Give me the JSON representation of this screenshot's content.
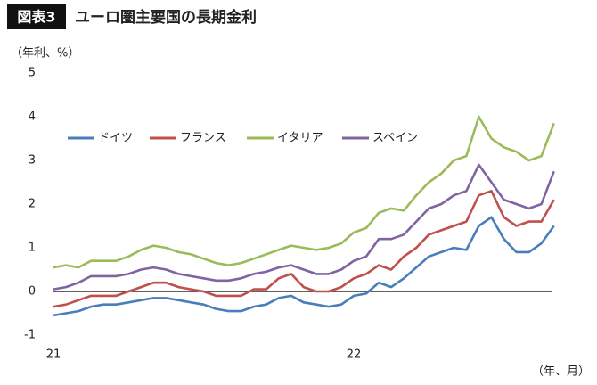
{
  "chart_data": {
    "type": "line",
    "badge": "図表3",
    "title": "ユーロ圏主要国の長期金利",
    "y_label": "（年利、%）",
    "x_label": "（年、月）",
    "categories": [
      "21",
      null,
      null,
      null,
      null,
      null,
      null,
      null,
      null,
      null,
      null,
      null,
      null,
      null,
      null,
      null,
      null,
      null,
      null,
      null,
      null,
      null,
      null,
      null,
      "22",
      null,
      null,
      null,
      null,
      null,
      null,
      null,
      null,
      null,
      null,
      null,
      null,
      null,
      null,
      null,
      null
    ],
    "ylim": [
      -1,
      5
    ],
    "yticks": [
      -1,
      0,
      1,
      2,
      3,
      4,
      5
    ],
    "series": [
      {
        "name": "ドイツ",
        "color": "#4a7ebb",
        "values": [
          -0.55,
          -0.5,
          -0.45,
          -0.35,
          -0.3,
          -0.3,
          -0.25,
          -0.2,
          -0.15,
          -0.15,
          -0.2,
          -0.25,
          -0.3,
          -0.4,
          -0.45,
          -0.45,
          -0.35,
          -0.3,
          -0.15,
          -0.1,
          -0.25,
          -0.3,
          -0.35,
          -0.3,
          -0.1,
          -0.05,
          0.2,
          0.1,
          0.3,
          0.55,
          0.8,
          0.9,
          1.0,
          0.95,
          1.5,
          1.7,
          1.2,
          0.9,
          0.9,
          1.1,
          1.5
        ]
      },
      {
        "name": "フランス",
        "color": "#c0504d",
        "values": [
          -0.35,
          -0.3,
          -0.2,
          -0.1,
          -0.1,
          -0.1,
          0.0,
          0.1,
          0.2,
          0.2,
          0.1,
          0.05,
          0.0,
          -0.1,
          -0.1,
          -0.1,
          0.05,
          0.05,
          0.3,
          0.4,
          0.1,
          0.0,
          0.0,
          0.1,
          0.3,
          0.4,
          0.6,
          0.5,
          0.8,
          1.0,
          1.3,
          1.4,
          1.5,
          1.6,
          2.2,
          2.3,
          1.7,
          1.5,
          1.6,
          1.6,
          2.1
        ]
      },
      {
        "name": "イタリア",
        "color": "#9bbb59",
        "values": [
          0.55,
          0.6,
          0.55,
          0.7,
          0.7,
          0.7,
          0.8,
          0.95,
          1.05,
          1.0,
          0.9,
          0.85,
          0.75,
          0.65,
          0.6,
          0.65,
          0.75,
          0.85,
          0.95,
          1.05,
          1.0,
          0.95,
          1.0,
          1.1,
          1.35,
          1.45,
          1.8,
          1.9,
          1.85,
          2.2,
          2.5,
          2.7,
          3.0,
          3.1,
          4.0,
          3.5,
          3.3,
          3.2,
          3.0,
          3.1,
          3.85
        ]
      },
      {
        "name": "スペイン",
        "color": "#8064a2",
        "values": [
          0.05,
          0.1,
          0.2,
          0.35,
          0.35,
          0.35,
          0.4,
          0.5,
          0.55,
          0.5,
          0.4,
          0.35,
          0.3,
          0.25,
          0.25,
          0.3,
          0.4,
          0.45,
          0.55,
          0.6,
          0.5,
          0.4,
          0.4,
          0.5,
          0.7,
          0.8,
          1.2,
          1.2,
          1.3,
          1.6,
          1.9,
          2.0,
          2.2,
          2.3,
          2.9,
          2.5,
          2.1,
          2.0,
          1.9,
          2.0,
          2.75
        ]
      }
    ]
  }
}
